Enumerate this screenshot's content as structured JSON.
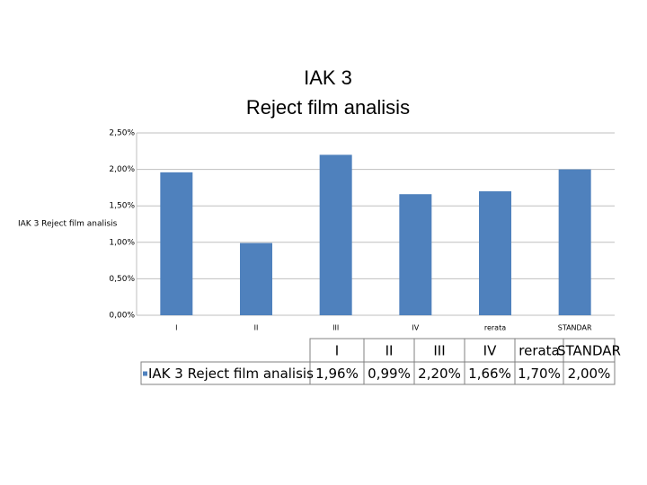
{
  "chart_data": {
    "type": "bar",
    "title": "IAK 3\nReject film analisis",
    "y_label": "IAK 3 Reject film analisis",
    "categories": [
      "I",
      "II",
      "III",
      "IV",
      "rerata",
      "STANDAR"
    ],
    "series": [
      {
        "name": "IAK 3 Reject film analisis",
        "color": "#4f81bd",
        "values": [
          1.96,
          0.99,
          2.2,
          1.66,
          1.7,
          2.0
        ],
        "value_labels": [
          "1,96%",
          "0,99%",
          "2,20%",
          "1,66%",
          "1,70%",
          "2,00%"
        ]
      }
    ],
    "ylim": [
      0,
      2.5
    ],
    "yticks": [
      {
        "value": 0,
        "label": "0,00%"
      },
      {
        "value": 0.5,
        "label": "0,50%"
      },
      {
        "value": 1,
        "label": "1,00%"
      },
      {
        "value": 1.5,
        "label": "1,50%"
      },
      {
        "value": 2,
        "label": "2,00%"
      },
      {
        "value": 2.5,
        "label": "2,50%"
      }
    ],
    "grid": true
  }
}
